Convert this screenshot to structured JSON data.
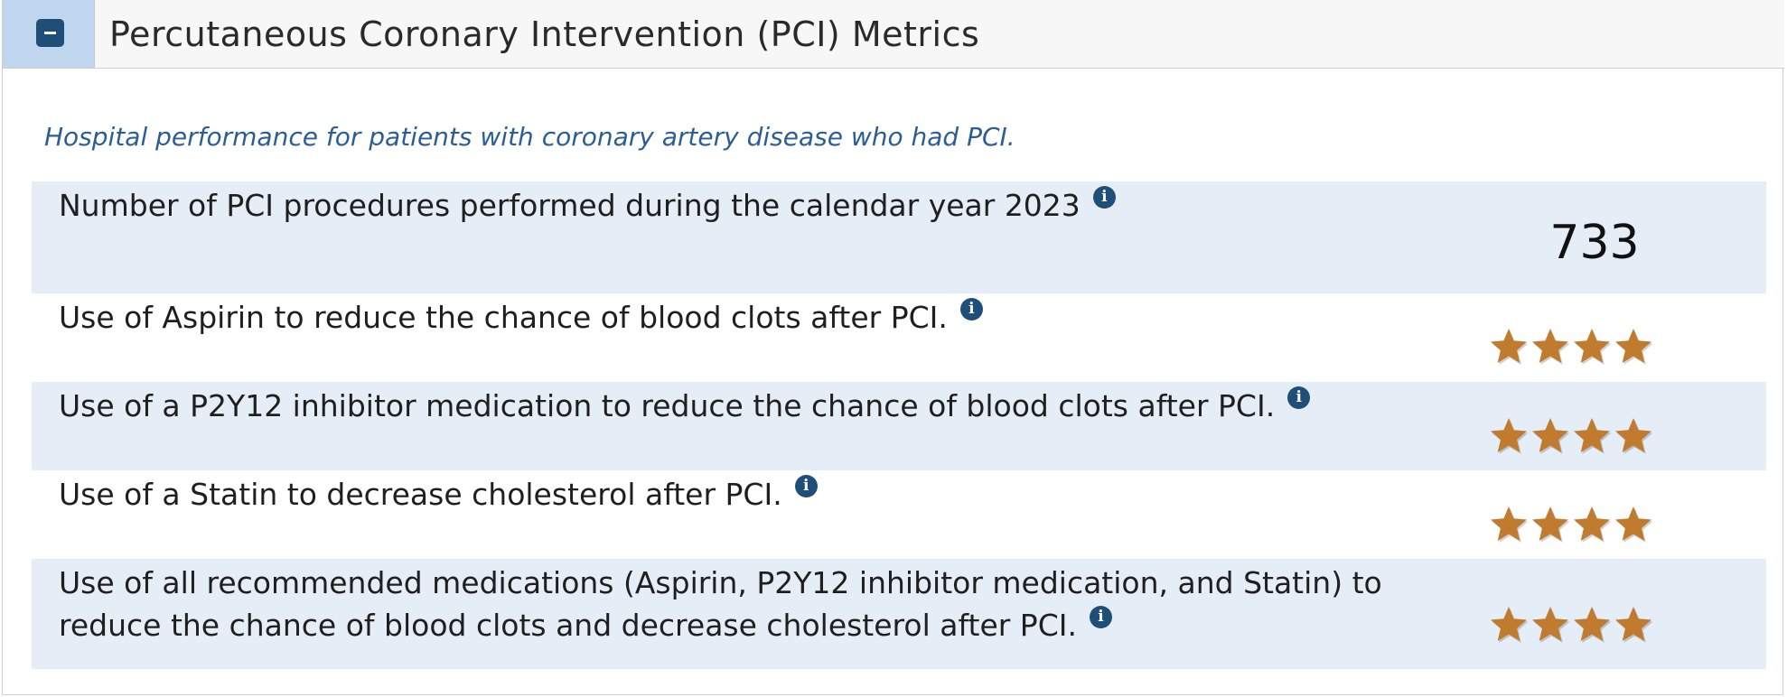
{
  "header": {
    "toggle_icon": "minus-square-icon",
    "title": "Percutaneous Coronary Intervention (PCI) Metrics"
  },
  "subtitle": "Hospital performance for patients with coronary artery disease who had PCI.",
  "colors": {
    "star": "#c07b2e",
    "info_icon": "#1f4e79",
    "row_shade": "#e5edf6",
    "subtitle": "#2b5e94"
  },
  "metrics": [
    {
      "label": "Number of PCI procedures performed during the calendar year 2023",
      "value": "733",
      "info_icon": "info-icon"
    },
    {
      "label": "Use of Aspirin to reduce the chance of blood clots after PCI.",
      "stars": 4,
      "stars_max": 4,
      "info_icon": "info-icon"
    },
    {
      "label": "Use of a P2Y12 inhibitor medication to reduce the chance of blood clots after PCI.",
      "stars": 4,
      "stars_max": 4,
      "info_icon": "info-icon"
    },
    {
      "label": "Use of a Statin to decrease cholesterol after PCI.",
      "stars": 4,
      "stars_max": 4,
      "info_icon": "info-icon"
    },
    {
      "label": "Use of all recommended medications (Aspirin, P2Y12 inhibitor medication, and Statin) to reduce the chance of blood clots and decrease cholesterol after PCI.",
      "stars": 4,
      "stars_max": 4,
      "info_icon": "info-icon"
    }
  ]
}
